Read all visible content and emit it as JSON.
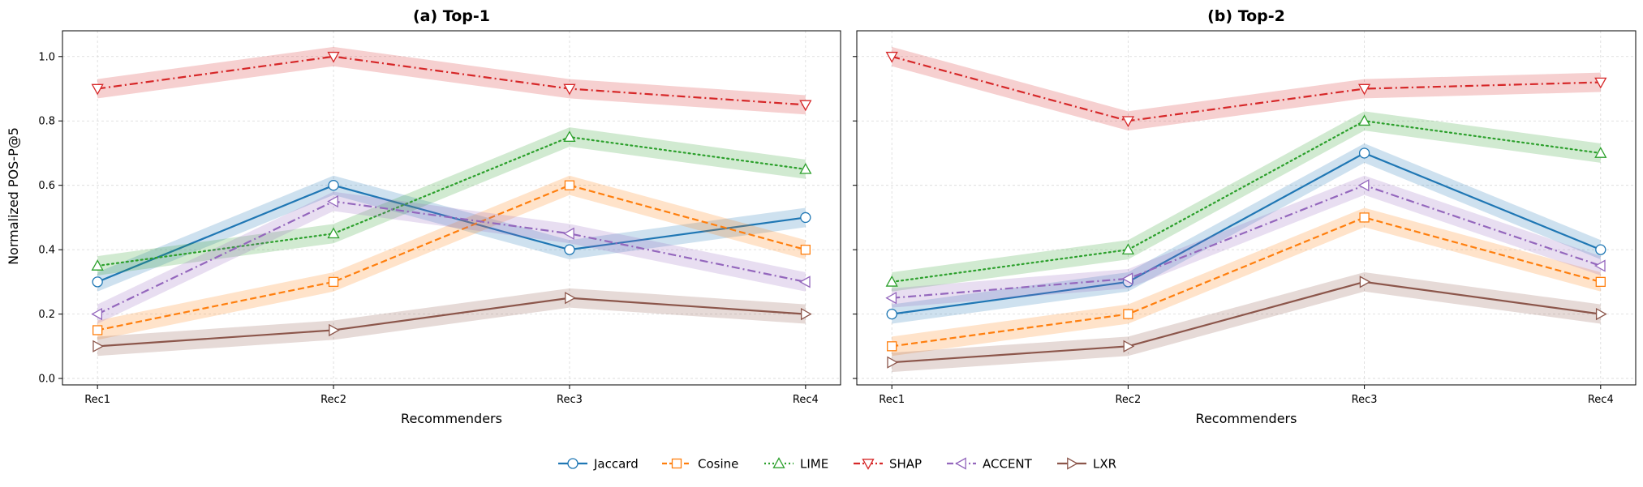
{
  "figure": {
    "ylabel": "Normalized POS-P@5"
  },
  "chart_data": [
    {
      "type": "line",
      "title": "(a) Top-1",
      "xlabel": "Recommenders",
      "ylabel": "Normalized POS-P@5",
      "categories": [
        "Rec1",
        "Rec2",
        "Rec3",
        "Rec4"
      ],
      "ylim": [
        -0.02,
        1.08
      ],
      "yticks": [
        0.0,
        0.2,
        0.4,
        0.6,
        0.8,
        1.0
      ],
      "grid": true,
      "series": [
        {
          "name": "Jaccard",
          "values": [
            0.3,
            0.6,
            0.4,
            0.5
          ]
        },
        {
          "name": "Cosine",
          "values": [
            0.15,
            0.3,
            0.6,
            0.4
          ]
        },
        {
          "name": "LIME",
          "values": [
            0.35,
            0.45,
            0.75,
            0.65
          ]
        },
        {
          "name": "SHAP",
          "values": [
            0.9,
            1.0,
            0.9,
            0.85
          ]
        },
        {
          "name": "ACCENT",
          "values": [
            0.2,
            0.55,
            0.45,
            0.3
          ]
        },
        {
          "name": "LXR",
          "values": [
            0.1,
            0.15,
            0.25,
            0.2
          ]
        }
      ]
    },
    {
      "type": "line",
      "title": "(b) Top-2",
      "xlabel": "Recommenders",
      "categories": [
        "Rec1",
        "Rec2",
        "Rec3",
        "Rec4"
      ],
      "ylim": [
        -0.02,
        1.08
      ],
      "yticks": [
        0.0,
        0.2,
        0.4,
        0.6,
        0.8,
        1.0
      ],
      "grid": true,
      "series": [
        {
          "name": "Jaccard",
          "values": [
            0.2,
            0.3,
            0.7,
            0.4
          ]
        },
        {
          "name": "Cosine",
          "values": [
            0.1,
            0.2,
            0.5,
            0.3
          ]
        },
        {
          "name": "LIME",
          "values": [
            0.3,
            0.4,
            0.8,
            0.7
          ]
        },
        {
          "name": "SHAP",
          "values": [
            1.0,
            0.8,
            0.9,
            0.92
          ]
        },
        {
          "name": "ACCENT",
          "values": [
            0.25,
            0.31,
            0.6,
            0.35
          ]
        },
        {
          "name": "LXR",
          "values": [
            0.05,
            0.1,
            0.3,
            0.2
          ]
        }
      ]
    }
  ],
  "legend": {
    "placement": "bottom-center",
    "entries": [
      "Jaccard",
      "Cosine",
      "LIME",
      "SHAP",
      "ACCENT",
      "LXR"
    ]
  },
  "series_styles": {
    "Jaccard": {
      "color": "#1f77b4",
      "marker": "circle",
      "dash": "solid"
    },
    "Cosine": {
      "color": "#ff7f0e",
      "marker": "square",
      "dash": "dashed"
    },
    "LIME": {
      "color": "#2ca02c",
      "marker": "triangle-up",
      "dash": "dotted"
    },
    "SHAP": {
      "color": "#d62728",
      "marker": "triangle-down",
      "dash": "dashdot"
    },
    "ACCENT": {
      "color": "#9467bd",
      "marker": "triangle-left",
      "dash": "dashdot"
    },
    "LXR": {
      "color": "#8c564b",
      "marker": "triangle-right",
      "dash": "solid"
    }
  }
}
